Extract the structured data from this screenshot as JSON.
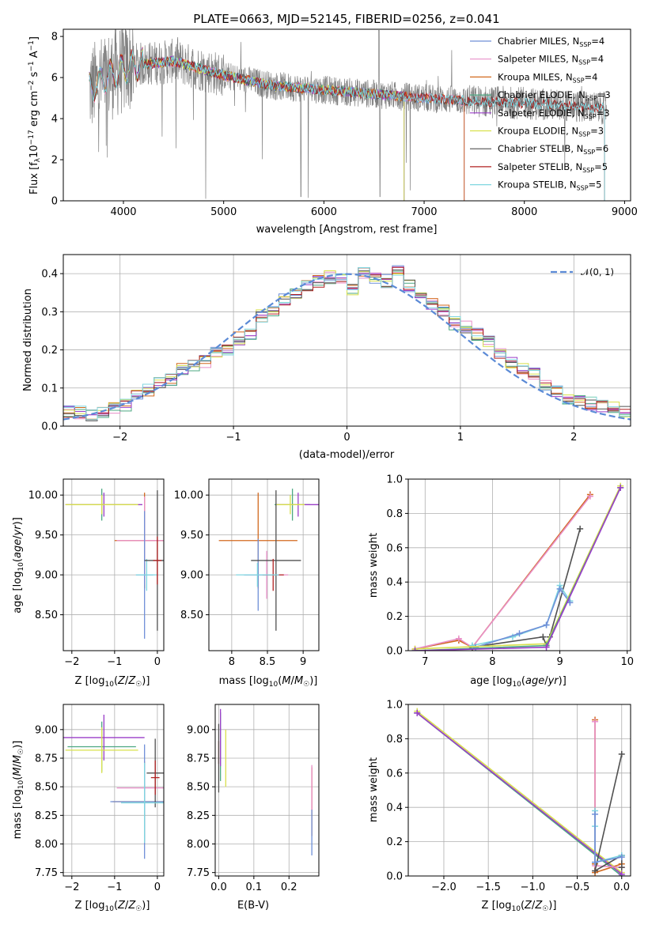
{
  "chart_data": [
    {
      "type": "line",
      "title": "PLATE=0663, MJD=52145, FIBERID=0256, z=0.041",
      "xlabel": "wavelength [Angstrom, rest frame]",
      "ylabel": "Flux [f_λ 10^-17 erg cm^-2 s^-1 A^-1]",
      "xlim": [
        3400,
        9060
      ],
      "ylim": [
        0,
        8.35
      ],
      "xticks": [
        4000,
        5000,
        6000,
        7000,
        8000,
        9000
      ],
      "yticks": [
        0,
        2,
        4,
        6,
        8
      ],
      "legend_position": "top-right",
      "observed_color": "#808080",
      "continuum": {
        "x": [
          3650,
          3900,
          4100,
          4500,
          5000,
          5500,
          6000,
          6500,
          7000,
          7500,
          8000,
          8500,
          8800
        ],
        "y": [
          5.4,
          6.2,
          6.6,
          6.8,
          6.1,
          5.6,
          5.4,
          5.2,
          5.0,
          4.85,
          4.75,
          4.6,
          4.5
        ]
      },
      "series": [
        {
          "name": "Chabrier MILES",
          "nssp": "4",
          "color": "#6f8fd8",
          "xmax": 7400
        },
        {
          "name": "Salpeter MILES",
          "nssp": "4",
          "color": "#e88fc8",
          "xmax": 7400
        },
        {
          "name": "Kroupa MILES",
          "nssp": "4",
          "color": "#d2691e",
          "xmax": 7400
        },
        {
          "name": "Chabrier ELODIE",
          "nssp": "3",
          "color": "#4ca882",
          "xmax": 6800
        },
        {
          "name": "Salpeter ELODIE",
          "nssp": "3",
          "color": "#9a3ec8",
          "xmax": 6800
        },
        {
          "name": "Kroupa ELODIE",
          "nssp": "3",
          "color": "#d8e04c",
          "xmax": 6800
        },
        {
          "name": "Chabrier STELIB",
          "nssp": "6",
          "color": "#505050",
          "xmax": 8800
        },
        {
          "name": "Salpeter STELIB",
          "nssp": "5",
          "color": "#b22222",
          "xmax": 8800
        },
        {
          "name": "Kroupa STELIB",
          "nssp": "5",
          "color": "#7fd6e0",
          "xmax": 8800
        }
      ]
    },
    {
      "type": "line",
      "xlabel": "(data-model)/error",
      "ylabel": "Normed distribution",
      "xlim": [
        -2.5,
        2.5
      ],
      "ylim": [
        0,
        0.45
      ],
      "xticks": [
        -2,
        -1,
        0,
        1,
        2
      ],
      "yticks": [
        0.0,
        0.1,
        0.2,
        0.3,
        0.4
      ],
      "grid": true,
      "legend_position": "top-right",
      "reference_curve": {
        "name": "𝒩(0, 1)",
        "color": "#5b8ad6"
      },
      "bin_edges_start": -2.5,
      "bin_width": 0.1,
      "histogram_values": [
        0.04,
        0.035,
        0.03,
        0.032,
        0.05,
        0.055,
        0.085,
        0.095,
        0.11,
        0.12,
        0.15,
        0.16,
        0.17,
        0.19,
        0.2,
        0.23,
        0.24,
        0.29,
        0.3,
        0.33,
        0.35,
        0.37,
        0.38,
        0.39,
        0.385,
        0.36,
        0.4,
        0.39,
        0.38,
        0.41,
        0.37,
        0.34,
        0.32,
        0.3,
        0.27,
        0.26,
        0.24,
        0.22,
        0.19,
        0.17,
        0.15,
        0.14,
        0.11,
        0.09,
        0.07,
        0.065,
        0.06,
        0.055,
        0.05,
        0.035
      ]
    },
    {
      "type": "scatter",
      "xlabel": "Z [log10(Z/Z☉)]",
      "ylabel": "age  [log10(age/yr)]",
      "xlim": [
        -2.2,
        0.15
      ],
      "ylim": [
        8.05,
        10.2
      ],
      "xticks": [
        -2,
        -1,
        0
      ],
      "yticks": [
        8.5,
        9.0,
        9.5,
        10.0
      ],
      "grid": true,
      "points": [
        {
          "x": -1.3,
          "y": 9.88,
          "xerr": 0.8,
          "yerr": 0.2,
          "color": "#4ca882"
        },
        {
          "x": -1.25,
          "y": 9.88,
          "xerr": 0.9,
          "yerr": 0.15,
          "color": "#9a3ec8"
        },
        {
          "x": -1.3,
          "y": 9.88,
          "xerr": 0.85,
          "yerr": 0.12,
          "color": "#d8e04c"
        },
        {
          "x": -0.3,
          "y": 9.43,
          "xerr": 0.7,
          "yerr": 0.6,
          "color": "#d2691e"
        },
        {
          "x": -0.3,
          "y": 9.43,
          "xerr": 0.65,
          "yerr": 0.55,
          "color": "#e88fc8"
        },
        {
          "x": -0.3,
          "y": 9.0,
          "xerr": 0.2,
          "yerr": 0.8,
          "color": "#6f8fd8"
        },
        {
          "x": -0.25,
          "y": 9.0,
          "xerr": 0.25,
          "yerr": 0.2,
          "color": "#7fd6e0"
        },
        {
          "x": 0.0,
          "y": 9.18,
          "xerr": 0.3,
          "yerr": 0.88,
          "color": "#505050"
        },
        {
          "x": 0.0,
          "y": 9.18,
          "xerr": 0.1,
          "yerr": 0.3,
          "color": "#b22222"
        }
      ]
    },
    {
      "type": "scatter",
      "xlabel": "mass [log10(M/M☉)]",
      "xlim": [
        7.68,
        9.22
      ],
      "ylim": [
        8.05,
        10.2
      ],
      "xticks": [
        8.0,
        8.5,
        9.0
      ],
      "yticks": [
        8.5,
        9.0,
        9.5,
        10.0
      ],
      "grid": true,
      "points": [
        {
          "x": 8.85,
          "y": 9.88,
          "xerr": 0.25,
          "yerr": 0.2,
          "color": "#4ca882"
        },
        {
          "x": 8.93,
          "y": 9.88,
          "xerr": 0.3,
          "yerr": 0.15,
          "color": "#9a3ec8"
        },
        {
          "x": 8.82,
          "y": 9.88,
          "xerr": 0.2,
          "yerr": 0.12,
          "color": "#d8e04c"
        },
        {
          "x": 8.37,
          "y": 9.43,
          "xerr": 0.55,
          "yerr": 0.6,
          "color": "#d2691e"
        },
        {
          "x": 8.49,
          "y": 9.0,
          "xerr": 0.3,
          "yerr": 0.3,
          "color": "#e88fc8"
        },
        {
          "x": 8.37,
          "y": 9.0,
          "xerr": 0.2,
          "yerr": 0.45,
          "color": "#6f8fd8"
        },
        {
          "x": 8.62,
          "y": 9.18,
          "xerr": 0.35,
          "yerr": 0.88,
          "color": "#505050"
        },
        {
          "x": 8.58,
          "y": 9.0,
          "xerr": 0.15,
          "yerr": 0.2,
          "color": "#b22222"
        },
        {
          "x": 8.36,
          "y": 9.0,
          "xerr": 0.3,
          "yerr": 0.15,
          "color": "#7fd6e0"
        }
      ]
    },
    {
      "type": "line",
      "xlabel": "age  [log10(age/yr)]",
      "ylabel": "mass weight",
      "xlim": [
        6.75,
        10.05
      ],
      "ylim": [
        0,
        1.0
      ],
      "xticks": [
        7,
        8,
        9,
        10
      ],
      "yticks": [
        0.0,
        0.2,
        0.4,
        0.6,
        0.8,
        1.0
      ],
      "grid": true,
      "series": [
        {
          "name": "Kroupa MILES",
          "color": "#d2691e",
          "x": [
            6.85,
            7.5,
            7.7,
            9.45
          ],
          "y": [
            0.01,
            0.06,
            0.02,
            0.91
          ]
        },
        {
          "name": "Salpeter MILES",
          "color": "#e88fc8",
          "x": [
            6.85,
            7.5,
            7.7,
            9.45
          ],
          "y": [
            0.01,
            0.07,
            0.02,
            0.9
          ]
        },
        {
          "name": "Chabrier STELIB",
          "color": "#505050",
          "x": [
            7.7,
            8.75,
            8.8,
            8.85,
            9.3
          ],
          "y": [
            0.02,
            0.08,
            0.03,
            0.08,
            0.71
          ]
        },
        {
          "name": "Kroupa STELIB",
          "color": "#7fd6e0",
          "x": [
            7.7,
            8.3,
            8.8,
            9.0,
            9.15
          ],
          "y": [
            0.03,
            0.08,
            0.15,
            0.38,
            0.29
          ]
        },
        {
          "name": "Chabrier MILES",
          "color": "#6f8fd8",
          "x": [
            7.75,
            8.4,
            8.8,
            9.0,
            9.15
          ],
          "y": [
            0.02,
            0.1,
            0.15,
            0.36,
            0.28
          ]
        },
        {
          "name": "Kroupa ELODIE",
          "color": "#d8e04c",
          "x": [
            6.85,
            8.8,
            9.9
          ],
          "y": [
            0.01,
            0.04,
            0.96
          ]
        },
        {
          "name": "Chabrier ELODIE",
          "color": "#4ca882",
          "x": [
            6.85,
            8.8,
            9.9
          ],
          "y": [
            0.0,
            0.03,
            0.95
          ]
        },
        {
          "name": "Salpeter ELODIE",
          "color": "#9a3ec8",
          "x": [
            6.85,
            8.8,
            9.9
          ],
          "y": [
            0.0,
            0.02,
            0.95
          ]
        }
      ]
    },
    {
      "type": "scatter",
      "xlabel": "Z [log10(Z/Z☉)]",
      "ylabel": "mass [log10(M/M☉)]",
      "xlim": [
        -2.2,
        0.15
      ],
      "ylim": [
        7.72,
        9.22
      ],
      "xticks": [
        -2,
        -1,
        0
      ],
      "yticks": [
        7.75,
        8.0,
        8.25,
        8.5,
        8.75,
        9.0
      ],
      "grid": true,
      "points": [
        {
          "x": -1.3,
          "y": 8.85,
          "xerr": 0.8,
          "yerr": 0.22,
          "color": "#4ca882"
        },
        {
          "x": -1.25,
          "y": 8.93,
          "xerr": 0.95,
          "yerr": 0.2,
          "color": "#9a3ec8"
        },
        {
          "x": -1.3,
          "y": 8.82,
          "xerr": 0.85,
          "yerr": 0.2,
          "color": "#d8e04c"
        },
        {
          "x": -0.3,
          "y": 8.37,
          "xerr": 0.75,
          "yerr": 0.35,
          "color": "#d2691e"
        },
        {
          "x": -0.3,
          "y": 8.49,
          "xerr": 0.65,
          "yerr": 0.2,
          "color": "#e88fc8"
        },
        {
          "x": -0.3,
          "y": 8.37,
          "xerr": 0.8,
          "yerr": 0.5,
          "color": "#6f8fd8"
        },
        {
          "x": -0.05,
          "y": 8.62,
          "xerr": 0.2,
          "yerr": 0.3,
          "color": "#505050"
        },
        {
          "x": -0.05,
          "y": 8.58,
          "xerr": 0.1,
          "yerr": 0.15,
          "color": "#b22222"
        },
        {
          "x": -0.3,
          "y": 8.36,
          "xerr": 0.55,
          "yerr": 0.35,
          "color": "#7fd6e0"
        }
      ]
    },
    {
      "type": "scatter",
      "xlabel": "E(B-V)",
      "xlim": [
        -0.01,
        0.285
      ],
      "ylim": [
        7.72,
        9.22
      ],
      "xticks": [
        0.0,
        0.1,
        0.2
      ],
      "yticks": [
        7.75,
        8.0,
        8.25,
        8.5,
        8.75,
        9.0
      ],
      "grid": true,
      "points": [
        {
          "x": 0.005,
          "y": 8.85,
          "yerr": 0.3,
          "color": "#4ca882"
        },
        {
          "x": 0.005,
          "y": 8.93,
          "yerr": 0.25,
          "color": "#9a3ec8"
        },
        {
          "x": 0.02,
          "y": 8.75,
          "yerr": 0.25,
          "color": "#d8e04c"
        },
        {
          "x": 0.0,
          "y": 8.8,
          "yerr": 0.1,
          "color": "#b22222"
        },
        {
          "x": 0.0,
          "y": 8.75,
          "yerr": 0.3,
          "color": "#505050"
        },
        {
          "x": 0.265,
          "y": 8.37,
          "yerr": 0.3,
          "color": "#d2691e"
        },
        {
          "x": 0.265,
          "y": 8.49,
          "yerr": 0.2,
          "color": "#e88fc8"
        },
        {
          "x": 0.265,
          "y": 8.1,
          "yerr": 0.2,
          "color": "#6f8fd8"
        }
      ]
    },
    {
      "type": "line",
      "xlabel": "Z [log10(Z/Z☉)]",
      "ylabel": "mass weight",
      "xlim": [
        -2.4,
        0.1
      ],
      "ylim": [
        0,
        1.0
      ],
      "xticks": [
        -2.0,
        -1.5,
        -1.0,
        -0.5,
        0.0
      ],
      "yticks": [
        0.0,
        0.2,
        0.4,
        0.6,
        0.8,
        1.0
      ],
      "grid": true,
      "series": [
        {
          "name": "Kroupa ELODIE",
          "color": "#d8e04c",
          "x": [
            -2.3,
            0.0
          ],
          "y": [
            0.96,
            0.02
          ]
        },
        {
          "name": "Chabrier ELODIE",
          "color": "#4ca882",
          "x": [
            -2.3,
            0.0
          ],
          "y": [
            0.95,
            0.0
          ]
        },
        {
          "name": "Salpeter ELODIE",
          "color": "#9a3ec8",
          "x": [
            -2.3,
            0.0
          ],
          "y": [
            0.95,
            0.01
          ]
        },
        {
          "name": "Kroupa MILES",
          "color": "#d2691e",
          "x": [
            -0.3,
            -0.3,
            -0.3,
            0.0
          ],
          "y": [
            0.91,
            0.07,
            0.02,
            0.07
          ]
        },
        {
          "name": "Salpeter MILES",
          "color": "#e88fc8",
          "x": [
            -0.3,
            -0.3,
            0.0
          ],
          "y": [
            0.9,
            0.06,
            0.05
          ]
        },
        {
          "name": "Chabrier STELIB",
          "color": "#505050",
          "x": [
            0.0,
            -0.3,
            0.0,
            0.0
          ],
          "y": [
            0.71,
            0.03,
            0.12,
            0.05
          ]
        },
        {
          "name": "Kroupa STELIB",
          "color": "#7fd6e0",
          "x": [
            -0.3,
            -0.3,
            -0.3,
            0.0
          ],
          "y": [
            0.38,
            0.29,
            0.08,
            0.12
          ]
        },
        {
          "name": "Chabrier MILES",
          "color": "#6f8fd8",
          "x": [
            -0.3,
            -0.3,
            0.0
          ],
          "y": [
            0.36,
            0.08,
            0.11
          ]
        }
      ]
    }
  ]
}
